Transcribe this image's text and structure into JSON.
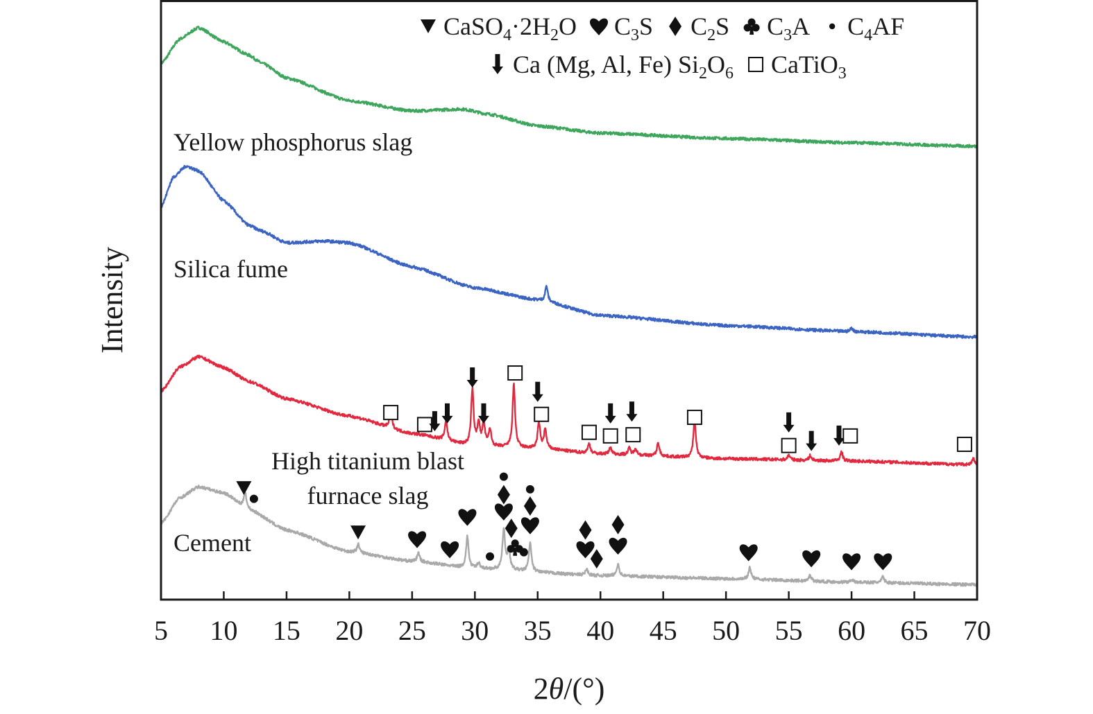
{
  "chart_data": {
    "type": "line",
    "title": "",
    "xlabel_parts": [
      [
        "2",
        ""
      ],
      [
        "θ",
        "italic"
      ],
      [
        "/(°)",
        ""
      ]
    ],
    "ylabel": "Intensity",
    "xlim": [
      5,
      70
    ],
    "ylim": [
      0,
      100
    ],
    "xticks": [
      5,
      10,
      15,
      20,
      25,
      30,
      35,
      40,
      45,
      50,
      55,
      60,
      65,
      70
    ],
    "grid": false,
    "legend_position": "top-right",
    "legend": [
      {
        "symbol": "triangle",
        "parts": [
          [
            "CaSO",
            ""
          ],
          [
            "4",
            "sub"
          ],
          [
            "·2H",
            ""
          ],
          [
            "2",
            "sub"
          ],
          [
            "O",
            ""
          ]
        ]
      },
      {
        "symbol": "heart",
        "parts": [
          [
            "C",
            ""
          ],
          [
            "3",
            "sub"
          ],
          [
            "S",
            ""
          ]
        ]
      },
      {
        "symbol": "diamond",
        "parts": [
          [
            "C",
            ""
          ],
          [
            "2",
            "sub"
          ],
          [
            "S",
            ""
          ]
        ]
      },
      {
        "symbol": "club",
        "parts": [
          [
            "C",
            ""
          ],
          [
            "3",
            "sub"
          ],
          [
            "A",
            ""
          ]
        ]
      },
      {
        "symbol": "dot",
        "parts": [
          [
            "C",
            ""
          ],
          [
            "4",
            "sub"
          ],
          [
            "AF",
            ""
          ]
        ]
      },
      {
        "symbol": "arrow",
        "parts": [
          [
            "Ca (Mg, Al, Fe) Si",
            ""
          ],
          [
            "2",
            "sub"
          ],
          [
            "O",
            ""
          ],
          [
            "6",
            "sub"
          ]
        ]
      },
      {
        "symbol": "square",
        "parts": [
          [
            "CaTiO",
            ""
          ],
          [
            "3",
            "sub"
          ]
        ]
      }
    ],
    "series": [
      {
        "name": "Yellow phosphorus slag",
        "color": "#3da55c",
        "baseline": [
          [
            5,
            89.4
          ],
          [
            6.5,
            93.5
          ],
          [
            8,
            95.4
          ],
          [
            10,
            93
          ],
          [
            12,
            90.8
          ],
          [
            13,
            89.5
          ],
          [
            15,
            87
          ],
          [
            20,
            83.2
          ],
          [
            25,
            81.5
          ],
          [
            29,
            81.8
          ],
          [
            31,
            81
          ],
          [
            35,
            79
          ],
          [
            40,
            77.8
          ],
          [
            50,
            76.9
          ],
          [
            60,
            76.2
          ],
          [
            70,
            75.6
          ]
        ],
        "peaks": []
      },
      {
        "name": "Silica fume",
        "color": "#3a63c2",
        "baseline": [
          [
            5,
            65.5
          ],
          [
            6,
            70.5
          ],
          [
            7,
            72.3
          ],
          [
            8,
            71.5
          ],
          [
            10,
            66.5
          ],
          [
            12,
            62.4
          ],
          [
            13,
            61.5
          ],
          [
            15,
            59.5
          ],
          [
            18,
            59.8
          ],
          [
            20,
            59.5
          ],
          [
            25,
            55.5
          ],
          [
            30,
            52
          ],
          [
            35,
            50
          ],
          [
            40,
            47.4
          ],
          [
            50,
            45.7
          ],
          [
            60,
            44.7
          ],
          [
            70,
            43.8
          ]
        ],
        "peaks": [
          [
            35.7,
            2.6
          ],
          [
            60.0,
            0.6
          ]
        ]
      },
      {
        "name": "High titanium blast furnace slag",
        "color": "#e2283e",
        "baseline": [
          [
            5,
            34.7
          ],
          [
            6.5,
            38.8
          ],
          [
            8,
            40.5
          ],
          [
            10,
            38.7
          ],
          [
            12,
            36.4
          ],
          [
            15,
            33.5
          ],
          [
            20,
            30.6
          ],
          [
            25,
            27.7
          ],
          [
            30,
            25.6
          ],
          [
            35,
            25.2
          ],
          [
            40,
            24.3
          ],
          [
            50,
            23.5
          ],
          [
            60,
            23.1
          ],
          [
            70,
            22.5
          ]
        ],
        "peaks": [
          [
            23.3,
            2.8
          ],
          [
            27.7,
            3.3
          ],
          [
            29.8,
            9.3
          ],
          [
            30.3,
            3.8
          ],
          [
            30.7,
            3.8
          ],
          [
            31.2,
            2.8
          ],
          [
            33.1,
            10.5
          ],
          [
            35.1,
            4.3
          ],
          [
            35.6,
            3.2
          ],
          [
            39.1,
            1.6
          ],
          [
            40.8,
            1.1
          ],
          [
            42.3,
            1.1
          ],
          [
            42.8,
            1.1
          ],
          [
            44.6,
            2.2
          ],
          [
            47.5,
            6.3
          ],
          [
            55.0,
            0.8
          ],
          [
            56.7,
            0.8
          ],
          [
            59.2,
            1.5
          ],
          [
            69.7,
            1.0
          ]
        ]
      },
      {
        "name": "Cement",
        "color": "#a9a9a9",
        "baseline": [
          [
            5,
            12.7
          ],
          [
            6.5,
            17
          ],
          [
            8,
            18.8
          ],
          [
            10,
            17.8
          ],
          [
            12,
            15
          ],
          [
            15,
            11.6
          ],
          [
            20,
            8
          ],
          [
            25,
            6.4
          ],
          [
            30,
            5.2
          ],
          [
            40,
            4
          ],
          [
            50,
            3.5
          ],
          [
            60,
            2.9
          ],
          [
            70,
            2.5
          ]
        ],
        "peaks": [
          [
            11.7,
            2.8
          ],
          [
            20.7,
            1.4
          ],
          [
            25.5,
            1.5
          ],
          [
            29.4,
            5.2
          ],
          [
            30.3,
            1.0
          ],
          [
            32.3,
            6.8
          ],
          [
            32.7,
            3.5
          ],
          [
            34.4,
            4.8
          ],
          [
            38.9,
            1.0
          ],
          [
            41.4,
            2.0
          ],
          [
            51.9,
            2.0
          ],
          [
            56.7,
            1.0
          ],
          [
            60.0,
            0.5
          ],
          [
            62.5,
            1.0
          ]
        ]
      }
    ],
    "series_labels": [
      {
        "lines": [
          "Yellow phosphorus slag"
        ]
      },
      {
        "lines": [
          "Silica fume"
        ]
      },
      {
        "lines": [
          "High titanium blast",
          "furnace slag"
        ]
      },
      {
        "lines": [
          "Cement"
        ]
      }
    ],
    "phase_markers": [
      {
        "symbol": "square",
        "x": 23.3,
        "y": 31.2
      },
      {
        "symbol": "square",
        "x": 26.0,
        "y": 29.2
      },
      {
        "symbol": "arrow",
        "x": 26.8,
        "y": 29.7
      },
      {
        "symbol": "arrow",
        "x": 27.8,
        "y": 31.0
      },
      {
        "symbol": "arrow",
        "x": 29.8,
        "y": 37.0
      },
      {
        "symbol": "arrow",
        "x": 30.7,
        "y": 31.0
      },
      {
        "symbol": "square",
        "x": 33.2,
        "y": 37.8
      },
      {
        "symbol": "arrow",
        "x": 35.0,
        "y": 34.6
      },
      {
        "symbol": "square",
        "x": 35.3,
        "y": 30.9
      },
      {
        "symbol": "square",
        "x": 39.1,
        "y": 27.9
      },
      {
        "symbol": "arrow",
        "x": 40.8,
        "y": 31.0
      },
      {
        "symbol": "square",
        "x": 40.8,
        "y": 27.3
      },
      {
        "symbol": "arrow",
        "x": 42.5,
        "y": 31.3
      },
      {
        "symbol": "square",
        "x": 42.6,
        "y": 27.5
      },
      {
        "symbol": "square",
        "x": 47.5,
        "y": 30.4
      },
      {
        "symbol": "arrow",
        "x": 55.0,
        "y": 29.5
      },
      {
        "symbol": "square",
        "x": 55.0,
        "y": 25.7
      },
      {
        "symbol": "arrow",
        "x": 56.8,
        "y": 26.4
      },
      {
        "symbol": "arrow",
        "x": 59.0,
        "y": 27.3
      },
      {
        "symbol": "square",
        "x": 59.9,
        "y": 27.3
      },
      {
        "symbol": "square",
        "x": 69.0,
        "y": 25.9
      },
      {
        "symbol": "triangle",
        "x": 11.6,
        "y": 18.6
      },
      {
        "symbol": "dot",
        "x": 12.4,
        "y": 16.8
      },
      {
        "symbol": "triangle",
        "x": 20.7,
        "y": 11.2
      },
      {
        "symbol": "heart",
        "x": 25.4,
        "y": 10.1
      },
      {
        "symbol": "heart",
        "x": 28.0,
        "y": 8.4
      },
      {
        "symbol": "heart",
        "x": 29.4,
        "y": 13.8
      },
      {
        "symbol": "dot",
        "x": 31.2,
        "y": 7.2
      },
      {
        "symbol": "dot",
        "x": 32.3,
        "y": 20.5
      },
      {
        "symbol": "diamond",
        "x": 32.3,
        "y": 17.5
      },
      {
        "symbol": "heart",
        "x": 32.3,
        "y": 14.7
      },
      {
        "symbol": "diamond",
        "x": 32.9,
        "y": 11.9
      },
      {
        "symbol": "club",
        "x": 33.2,
        "y": 8.7
      },
      {
        "symbol": "dot",
        "x": 33.9,
        "y": 7.9
      },
      {
        "symbol": "dot",
        "x": 34.4,
        "y": 18.4
      },
      {
        "symbol": "diamond",
        "x": 34.4,
        "y": 15.6
      },
      {
        "symbol": "heart",
        "x": 34.4,
        "y": 12.4
      },
      {
        "symbol": "diamond",
        "x": 38.8,
        "y": 11.6
      },
      {
        "symbol": "heart",
        "x": 38.8,
        "y": 8.4
      },
      {
        "symbol": "diamond",
        "x": 39.7,
        "y": 6.8
      },
      {
        "symbol": "diamond",
        "x": 41.4,
        "y": 12.5
      },
      {
        "symbol": "heart",
        "x": 41.4,
        "y": 9.0
      },
      {
        "symbol": "heart",
        "x": 51.8,
        "y": 7.9
      },
      {
        "symbol": "heart",
        "x": 56.8,
        "y": 6.9
      },
      {
        "symbol": "heart",
        "x": 60.0,
        "y": 6.4
      },
      {
        "symbol": "heart",
        "x": 62.5,
        "y": 6.4
      }
    ]
  }
}
